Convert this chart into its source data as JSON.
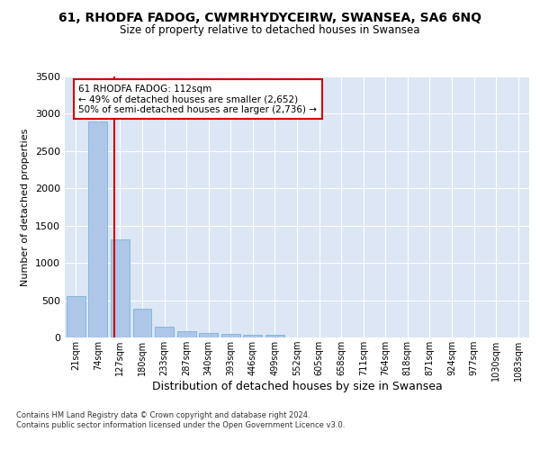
{
  "title": "61, RHODFA FADOG, CWMRHYDYCEIRW, SWANSEA, SA6 6NQ",
  "subtitle": "Size of property relative to detached houses in Swansea",
  "xlabel": "Distribution of detached houses by size in Swansea",
  "ylabel": "Number of detached properties",
  "bar_color": "#aec6e8",
  "bar_edge_color": "#6aaed6",
  "categories": [
    "21sqm",
    "74sqm",
    "127sqm",
    "180sqm",
    "233sqm",
    "287sqm",
    "340sqm",
    "393sqm",
    "446sqm",
    "499sqm",
    "552sqm",
    "605sqm",
    "658sqm",
    "711sqm",
    "764sqm",
    "818sqm",
    "871sqm",
    "924sqm",
    "977sqm",
    "1030sqm",
    "1083sqm"
  ],
  "values": [
    550,
    2900,
    1320,
    390,
    145,
    80,
    55,
    50,
    35,
    40,
    0,
    0,
    0,
    0,
    0,
    0,
    0,
    0,
    0,
    0,
    0
  ],
  "ylim": [
    0,
    3500
  ],
  "yticks": [
    0,
    500,
    1000,
    1500,
    2000,
    2500,
    3000,
    3500
  ],
  "property_line_x": 1.73,
  "annotation_text": "61 RHODFA FADOG: 112sqm\n← 49% of detached houses are smaller (2,652)\n50% of semi-detached houses are larger (2,736) →",
  "annotation_box_color": "#ffffff",
  "annotation_box_edge": "#cc0000",
  "property_line_color": "#cc0000",
  "background_color": "#dce6f5",
  "fig_background": "#ffffff",
  "footer_text": "Contains HM Land Registry data © Crown copyright and database right 2024.\nContains public sector information licensed under the Open Government Licence v3.0.",
  "grid_color": "#ffffff",
  "title_fontsize": 10,
  "subtitle_fontsize": 9
}
